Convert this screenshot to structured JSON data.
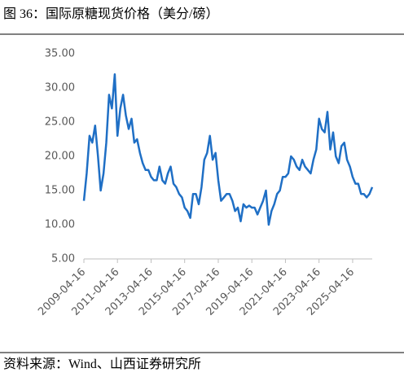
{
  "chart_data": {
    "type": "line",
    "title": "图 36：国际原糖现货价格（美分/磅）",
    "source": "资料来源：Wind、山西证券研究所",
    "x": [
      "2009-04-16",
      "2009-06-16",
      "2009-08-16",
      "2009-10-16",
      "2009-12-16",
      "2010-02-16",
      "2010-04-16",
      "2010-06-16",
      "2010-08-16",
      "2010-10-16",
      "2010-12-16",
      "2011-02-16",
      "2011-04-16",
      "2011-06-16",
      "2011-08-16",
      "2011-10-16",
      "2011-12-16",
      "2012-02-16",
      "2012-04-16",
      "2012-06-16",
      "2012-08-16",
      "2012-10-16",
      "2012-12-16",
      "2013-02-16",
      "2013-04-16",
      "2013-06-16",
      "2013-08-16",
      "2013-10-16",
      "2013-12-16",
      "2014-02-16",
      "2014-04-16",
      "2014-06-16",
      "2014-08-16",
      "2014-10-16",
      "2014-12-16",
      "2015-02-16",
      "2015-04-16",
      "2015-06-16",
      "2015-08-16",
      "2015-10-16",
      "2015-12-16",
      "2016-02-16",
      "2016-04-16",
      "2016-06-16",
      "2016-08-16",
      "2016-10-16",
      "2016-12-16",
      "2017-02-16",
      "2017-04-16",
      "2017-06-16",
      "2017-08-16",
      "2017-10-16",
      "2017-12-16",
      "2018-02-16",
      "2018-04-16",
      "2018-06-16",
      "2018-08-16",
      "2018-10-16",
      "2018-12-16",
      "2019-02-16",
      "2019-04-16",
      "2019-06-16",
      "2019-08-16",
      "2019-10-16",
      "2019-12-16",
      "2020-02-16",
      "2020-04-16",
      "2020-06-16",
      "2020-08-16",
      "2020-10-16",
      "2020-12-16",
      "2021-02-16",
      "2021-04-16",
      "2021-06-16",
      "2021-08-16",
      "2021-10-16",
      "2021-12-16",
      "2022-02-16",
      "2022-04-16",
      "2022-06-16",
      "2022-08-16",
      "2022-10-16",
      "2022-12-16",
      "2023-02-16",
      "2023-04-16",
      "2023-06-16",
      "2023-08-16",
      "2023-10-16",
      "2023-12-16",
      "2024-02-16",
      "2024-04-16",
      "2024-06-16",
      "2024-08-16",
      "2024-10-16",
      "2024-12-16",
      "2025-02-16",
      "2025-04-16",
      "2025-06-16",
      "2025-08-16",
      "2025-10-16",
      "2025-12-16",
      "2026-02-16",
      "2026-04-16",
      "2026-06-16"
    ],
    "series": [
      {
        "color": "#1f6fc5",
        "values": [
          13.5,
          17.5,
          23,
          22,
          24.5,
          20,
          15,
          17.5,
          22,
          29,
          27,
          32,
          23,
          27,
          29,
          26,
          24,
          25.5,
          22,
          22.5,
          20.5,
          19,
          18,
          18,
          17,
          16.5,
          16.5,
          18.5,
          16.5,
          16,
          17.5,
          18.5,
          16,
          15.5,
          14.5,
          14,
          12.5,
          12,
          11,
          14.5,
          14.5,
          13,
          15.5,
          19.5,
          20.5,
          23,
          19.5,
          20.5,
          16.5,
          13.5,
          14,
          14.5,
          14.5,
          13.5,
          12,
          12.5,
          10.5,
          13,
          12.5,
          12.8,
          12.5,
          12.5,
          11.5,
          12.5,
          13.5,
          15,
          10,
          12,
          13,
          14.5,
          15,
          17,
          17,
          17.5,
          20,
          19.5,
          18.5,
          18,
          19.5,
          18.5,
          18,
          17.5,
          19.5,
          21,
          25.5,
          24,
          23.5,
          26.5,
          21,
          23.5,
          20,
          19,
          21.5,
          22,
          19.5,
          18.5,
          17,
          16,
          16,
          14.5,
          14.5,
          14,
          14.5,
          15.5
        ]
      }
    ],
    "xlim": [
      "2009-04-16",
      "2026-06-16"
    ],
    "xticks": [
      "2009-04-16",
      "2011-04-16",
      "2013-04-16",
      "2015-04-16",
      "2017-04-16",
      "2019-04-16",
      "2021-04-16",
      "2023-04-16",
      "2025-04-16"
    ],
    "ylim": [
      5,
      35
    ],
    "yticks": [
      {
        "value": 5,
        "label": "5.00"
      },
      {
        "value": 10,
        "label": "10.00"
      },
      {
        "value": 15,
        "label": "15.00"
      },
      {
        "value": 20,
        "label": "20.00"
      },
      {
        "value": 25,
        "label": "25.00"
      },
      {
        "value": 30,
        "label": "30.00"
      },
      {
        "value": 35,
        "label": "35.00"
      }
    ]
  }
}
